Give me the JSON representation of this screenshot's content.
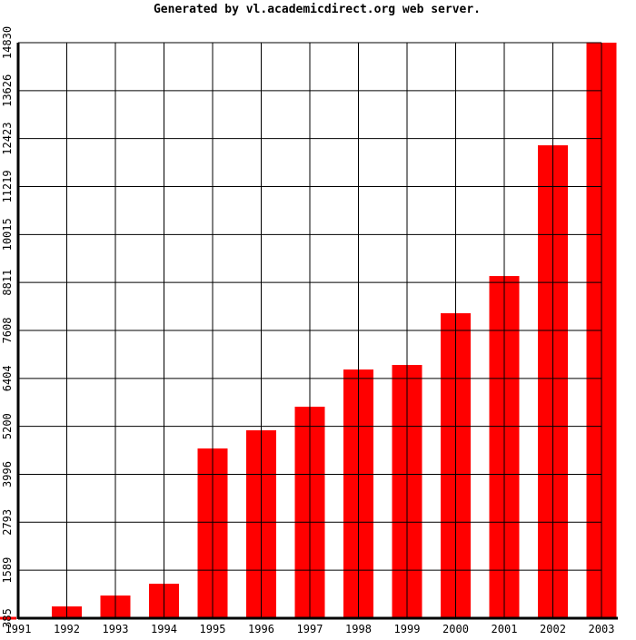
{
  "chart_data": {
    "type": "bar",
    "title": "Generated by vl.academicdirect.org web server.",
    "xlabel": "",
    "ylabel": "",
    "categories": [
      "1991",
      "1992",
      "1993",
      "1994",
      "1995",
      "1996",
      "1997",
      "1998",
      "1999",
      "2000",
      "2001",
      "2002",
      "2003"
    ],
    "values": [
      385,
      681,
      955,
      1251,
      4645,
      5101,
      5693,
      6627,
      6741,
      8039,
      8973,
      12254,
      14830
    ],
    "yticks": [
      385,
      1589,
      2793,
      3996,
      5200,
      6404,
      7608,
      8811,
      10015,
      11219,
      12423,
      13626,
      14830
    ],
    "ylim": [
      385,
      14830
    ],
    "grid": true,
    "legend": "none",
    "bar_color": "#ff0000",
    "grid_color": "#000000"
  }
}
